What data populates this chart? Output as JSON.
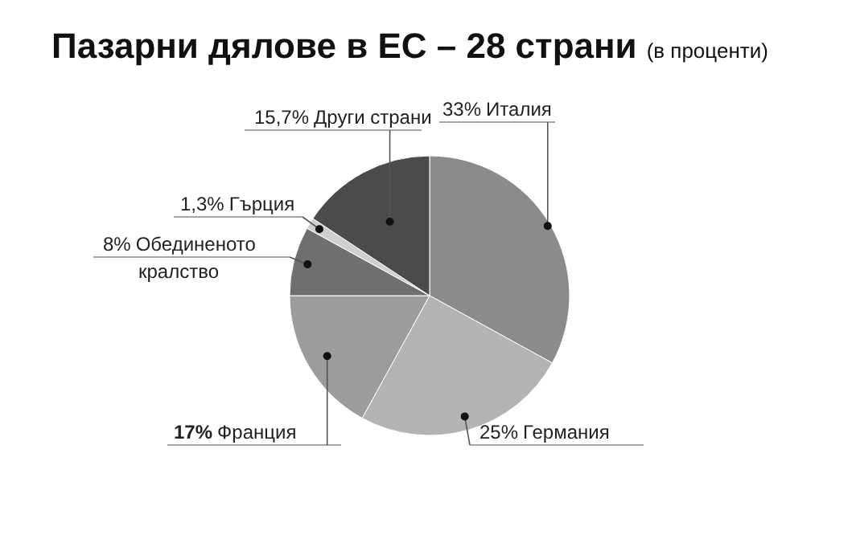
{
  "chart_data": {
    "type": "pie",
    "title": "Пазарни дялове в ЕС – 28 страни",
    "subtitle": "(в проценти)",
    "categories": [
      "Италия",
      "Германия",
      "Франция",
      "Обединеното кралство",
      "Гърция",
      "Други страни"
    ],
    "values": [
      33,
      25,
      17,
      8,
      1.3,
      15.7
    ],
    "value_labels": [
      "33%",
      "25%",
      "17%",
      "8%",
      "1,3%",
      "15,7%"
    ],
    "colors": [
      "#8b8b8b",
      "#b3b3b3",
      "#9c9c9c",
      "#6f6f6f",
      "#cfcfcf",
      "#4b4b4b"
    ]
  }
}
